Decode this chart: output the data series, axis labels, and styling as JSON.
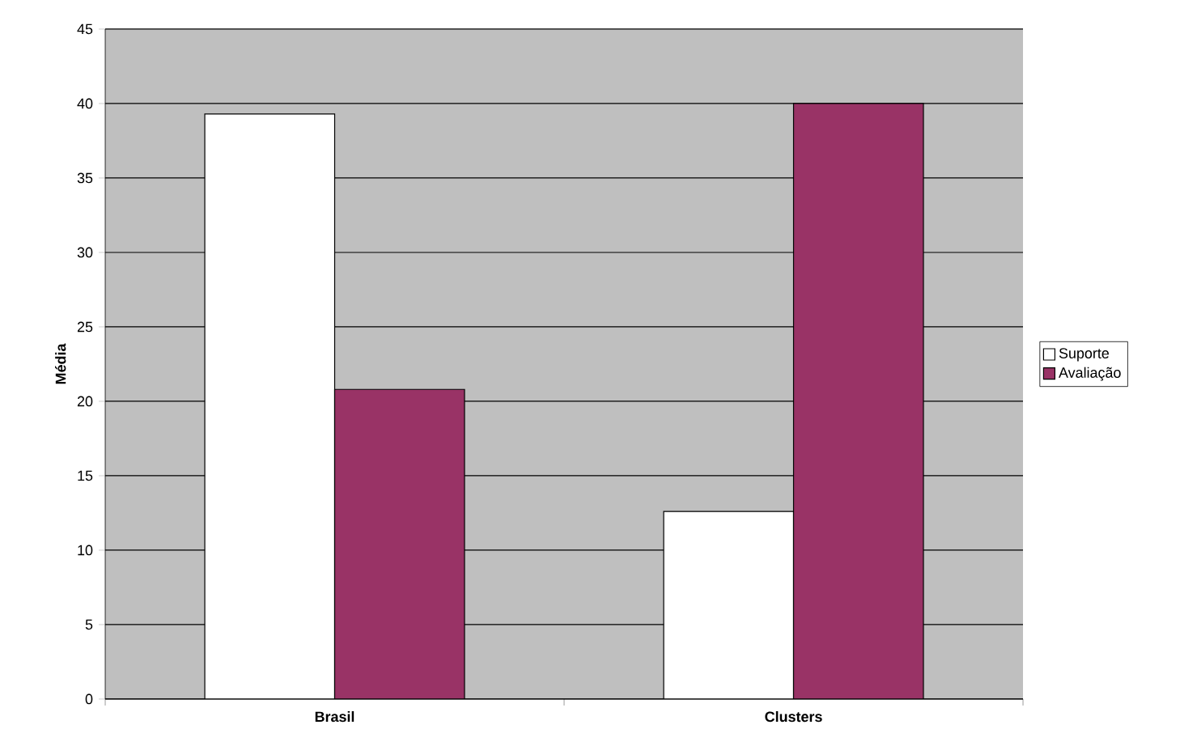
{
  "chart_data": {
    "type": "bar",
    "ylabel": "Média",
    "categories": [
      "Brasil",
      "Clusters"
    ],
    "series": [
      {
        "name": "Suporte",
        "color": "#ffffff",
        "values": [
          39.3,
          12.6
        ]
      },
      {
        "name": "Avaliação",
        "color": "#993366",
        "values": [
          20.8,
          40
        ]
      }
    ],
    "ylim": [
      0,
      45
    ],
    "yticks": [
      0,
      5,
      10,
      15,
      20,
      25,
      30,
      35,
      40,
      45
    ],
    "grid": "y",
    "legend": "right"
  }
}
